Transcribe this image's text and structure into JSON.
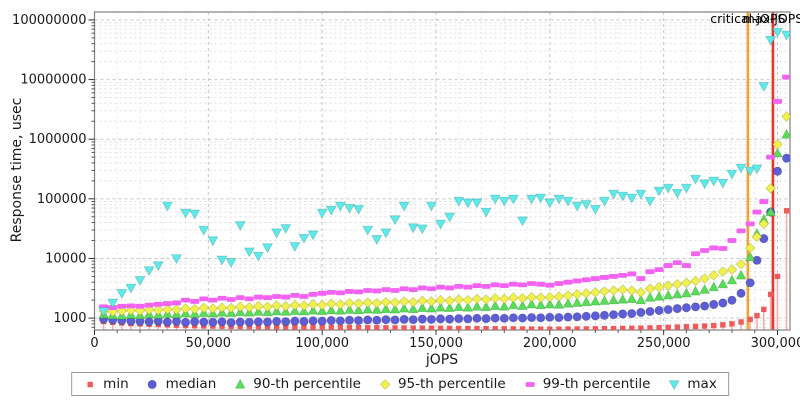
{
  "chart_data": {
    "type": "scatter",
    "title": "",
    "xlabel": "jOPS",
    "ylabel": "Response time, usec",
    "x_scale": "linear",
    "y_scale": "log",
    "xlim": [
      0,
      305500
    ],
    "ylim": [
      631,
      136000000
    ],
    "grid": true,
    "legend_position": "bottom",
    "x_axis": {
      "major_tick_step": 50000,
      "minor_tick_step": 10000,
      "ticks": [
        {
          "v": 0,
          "label": "0"
        },
        {
          "v": 50000,
          "label": "50,000"
        },
        {
          "v": 100000,
          "label": "100,000"
        },
        {
          "v": 150000,
          "label": "150,000"
        },
        {
          "v": 200000,
          "label": "200,000"
        },
        {
          "v": 250000,
          "label": "250,000"
        },
        {
          "v": 300000,
          "label": "300,000"
        }
      ]
    },
    "y_axis": {
      "ticks": [
        {
          "v": 1000,
          "label": "1000"
        },
        {
          "v": 10000,
          "label": "10000"
        },
        {
          "v": 100000,
          "label": "100000"
        },
        {
          "v": 1000000,
          "label": "1000000"
        },
        {
          "v": 10000000,
          "label": "10000000"
        },
        {
          "v": 100000000,
          "label": "100000000"
        }
      ]
    },
    "vlines": [
      {
        "label": "critical-jOPS",
        "x": 287000,
        "color": "#f0a330",
        "name": "critical-jops-line"
      },
      {
        "label": "max-jOPS",
        "x": 298000,
        "color": "#e8362c",
        "name": "max-jops-line"
      }
    ],
    "x": [
      4000,
      8000,
      12000,
      16000,
      20000,
      24000,
      28000,
      32000,
      36000,
      40000,
      44000,
      48000,
      52000,
      56000,
      60000,
      64000,
      68000,
      72000,
      76000,
      80000,
      84000,
      88000,
      92000,
      96000,
      100000,
      104000,
      108000,
      112000,
      116000,
      120000,
      124000,
      128000,
      132000,
      136000,
      140000,
      144000,
      148000,
      152000,
      156000,
      160000,
      164000,
      168000,
      172000,
      176000,
      180000,
      184000,
      188000,
      192000,
      196000,
      200000,
      204000,
      208000,
      212000,
      216000,
      220000,
      224000,
      228000,
      232000,
      236000,
      240000,
      244000,
      248000,
      252000,
      256000,
      260000,
      264000,
      268000,
      272000,
      276000,
      280000,
      284000,
      288000,
      291000,
      294000,
      297000,
      300000,
      304000
    ],
    "series": [
      {
        "name": "min",
        "marker": "square",
        "style": "impulse",
        "color": "#ef5a5a",
        "impulse_color": "#f7a8a8",
        "values": [
          880,
          850,
          830,
          810,
          800,
          790,
          780,
          770,
          760,
          750,
          745,
          740,
          735,
          730,
          725,
          722,
          720,
          718,
          715,
          712,
          710,
          708,
          705,
          702,
          700,
          698,
          696,
          694,
          692,
          690,
          688,
          686,
          684,
          682,
          680,
          678,
          676,
          674,
          672,
          670,
          668,
          666,
          664,
          662,
          660,
          658,
          656,
          654,
          652,
          650,
          652,
          654,
          656,
          658,
          660,
          663,
          666,
          670,
          674,
          678,
          684,
          690,
          698,
          706,
          715,
          725,
          735,
          750,
          770,
          800,
          860,
          950,
          1100,
          1400,
          2500,
          5000,
          63000
        ]
      },
      {
        "name": "median",
        "marker": "circle",
        "color": "#5d5dd5",
        "values": [
          960,
          930,
          910,
          890,
          880,
          870,
          890,
          860,
          880,
          850,
          870,
          860,
          850,
          870,
          840,
          860,
          850,
          870,
          860,
          880,
          870,
          890,
          880,
          900,
          890,
          910,
          900,
          920,
          910,
          930,
          920,
          940,
          930,
          950,
          940,
          960,
          950,
          970,
          960,
          980,
          970,
          990,
          980,
          1000,
          990,
          1010,
          1000,
          1020,
          1010,
          1030,
          1020,
          1040,
          1050,
          1070,
          1090,
          1110,
          1140,
          1170,
          1190,
          1240,
          1290,
          1340,
          1390,
          1440,
          1490,
          1540,
          1590,
          1690,
          1790,
          1990,
          2600,
          3900,
          9300,
          21500,
          60000,
          290000,
          480000
        ]
      },
      {
        "name": "90-th percentile",
        "marker": "triangle-up",
        "color": "#57dd57",
        "values": [
          1150,
          1120,
          1100,
          1140,
          1120,
          1160,
          1140,
          1180,
          1160,
          1200,
          1180,
          1220,
          1200,
          1240,
          1220,
          1260,
          1240,
          1280,
          1260,
          1300,
          1280,
          1320,
          1300,
          1340,
          1320,
          1360,
          1340,
          1380,
          1360,
          1400,
          1380,
          1420,
          1400,
          1450,
          1420,
          1480,
          1450,
          1500,
          1480,
          1530,
          1500,
          1560,
          1530,
          1600,
          1560,
          1650,
          1600,
          1700,
          1650,
          1700,
          1680,
          1750,
          1800,
          1850,
          1900,
          1950,
          2000,
          2050,
          2100,
          2000,
          2200,
          2300,
          2400,
          2500,
          2600,
          2800,
          3000,
          3300,
          3700,
          4300,
          5200,
          10500,
          26000,
          45000,
          60000,
          580000,
          1200000
        ]
      },
      {
        "name": "95-th percentile",
        "marker": "diamond",
        "color": "#f0f04e",
        "values": [
          1300,
          1280,
          1320,
          1350,
          1330,
          1380,
          1360,
          1400,
          1380,
          1450,
          1420,
          1480,
          1450,
          1500,
          1480,
          1550,
          1520,
          1580,
          1550,
          1620,
          1580,
          1650,
          1620,
          1700,
          1650,
          1750,
          1700,
          1780,
          1750,
          1820,
          1780,
          1850,
          1820,
          1900,
          1850,
          1950,
          1900,
          2000,
          1950,
          2050,
          2000,
          2100,
          2050,
          2150,
          2100,
          2200,
          2150,
          2250,
          2200,
          2250,
          2300,
          2400,
          2500,
          2600,
          2700,
          2800,
          2900,
          3000,
          2900,
          2700,
          3100,
          3300,
          3500,
          3700,
          3900,
          4200,
          4600,
          5200,
          6000,
          6500,
          8000,
          15000,
          23000,
          38000,
          150000,
          820000,
          2400000
        ]
      },
      {
        "name": "99-th percentile",
        "marker": "hbar",
        "color": "#f263f2",
        "values": [
          1550,
          1500,
          1580,
          1600,
          1580,
          1650,
          1700,
          1750,
          1800,
          2000,
          1900,
          2100,
          2000,
          2150,
          2050,
          2200,
          2100,
          2250,
          2200,
          2300,
          2250,
          2400,
          2300,
          2500,
          2600,
          2700,
          2650,
          2800,
          2750,
          2900,
          2850,
          3000,
          2900,
          3100,
          3000,
          3200,
          3100,
          3300,
          3200,
          3400,
          3300,
          3500,
          3400,
          3600,
          3500,
          3700,
          3600,
          3800,
          3700,
          3550,
          3800,
          4000,
          4200,
          4400,
          4600,
          4800,
          5000,
          5200,
          5500,
          4600,
          6000,
          6500,
          7600,
          8500,
          7600,
          12000,
          13600,
          15000,
          14700,
          20000,
          29000,
          38000,
          60000,
          90000,
          500000,
          4300000,
          11000000
        ]
      },
      {
        "name": "max",
        "marker": "triangle-down",
        "color": "#5fe9e9",
        "values": [
          1300,
          1800,
          2600,
          3200,
          4300,
          6300,
          7600,
          76000,
          10000,
          58000,
          56000,
          30000,
          20000,
          9500,
          8600,
          36000,
          13000,
          11000,
          15200,
          27000,
          32000,
          16000,
          22000,
          25000,
          58000,
          65000,
          76000,
          70000,
          67000,
          30000,
          21000,
          27000,
          45000,
          76000,
          33000,
          31600,
          76000,
          38000,
          50000,
          92000,
          86000,
          86000,
          60000,
          100000,
          92000,
          100000,
          43000,
          100000,
          104000,
          86000,
          100000,
          92000,
          76000,
          81000,
          67000,
          92000,
          121000,
          112000,
          104000,
          121000,
          92000,
          136000,
          152000,
          125000,
          152000,
          215000,
          180000,
          200000,
          185000,
          262000,
          330000,
          295000,
          320000,
          7700000,
          46000000,
          63000000,
          56000000
        ]
      }
    ]
  }
}
